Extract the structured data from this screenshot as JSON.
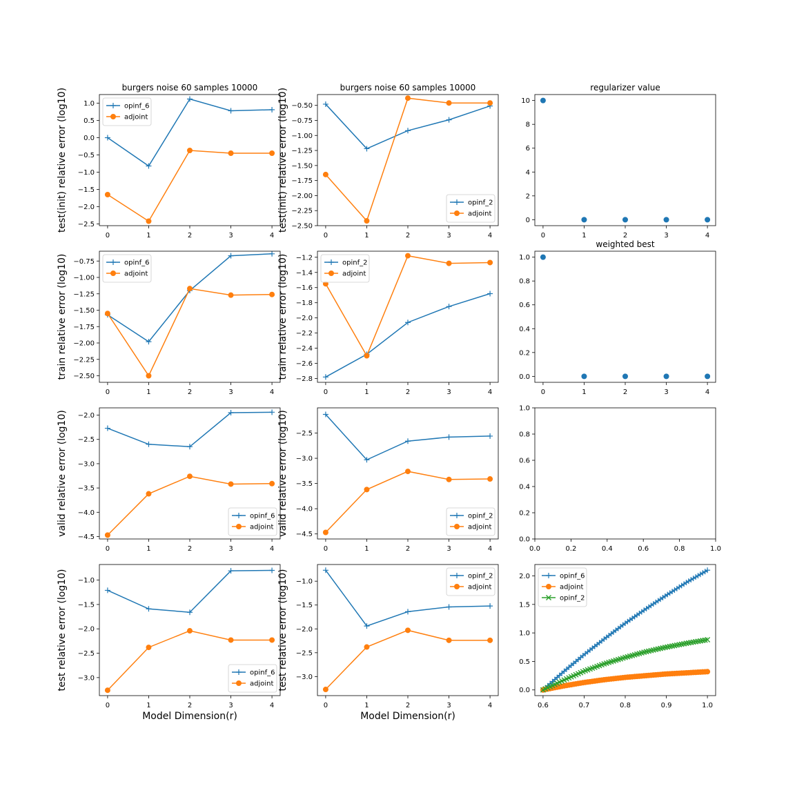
{
  "chart_data": [
    {
      "type": "line",
      "title": "burgers noise 60 samples 10000",
      "ylabel": "test(init) relative error (log10)",
      "xlabel": "",
      "x": [
        0,
        1,
        2,
        3,
        4
      ],
      "xticks": [
        "0",
        "1",
        "2",
        "3",
        "4"
      ],
      "ylim": [
        -2.55,
        1.25
      ],
      "yticks": [
        -2.5,
        -2.0,
        -1.5,
        -1.0,
        -0.5,
        0.0,
        0.5,
        1.0
      ],
      "yticklabels": [
        "−2.5",
        "−2.0",
        "−1.5",
        "−1.0",
        "−0.5",
        "0.0",
        "0.5",
        "1.0"
      ],
      "legend": "top-left",
      "series": [
        {
          "name": "opinf_6",
          "color": "#1f77b4",
          "marker": "plus",
          "values": [
            0.0,
            -0.82,
            1.12,
            0.78,
            0.81
          ]
        },
        {
          "name": "adjoint",
          "color": "#ff7f0e",
          "marker": "circle",
          "values": [
            -1.65,
            -2.42,
            -0.37,
            -0.45,
            -0.45
          ]
        }
      ]
    },
    {
      "type": "line",
      "title": "burgers noise 60 samples 10000",
      "ylabel": "test(init) relative error (log10)",
      "xlabel": "",
      "x": [
        0,
        1,
        2,
        3,
        4
      ],
      "xticks": [
        "0",
        "1",
        "2",
        "3",
        "4"
      ],
      "ylim": [
        -2.5,
        -0.32
      ],
      "yticks": [
        -2.5,
        -2.25,
        -2.0,
        -1.75,
        -1.5,
        -1.25,
        -1.0,
        -0.75,
        -0.5
      ],
      "yticklabels": [
        "−2.50",
        "−2.25",
        "−2.00",
        "−1.75",
        "−1.50",
        "−1.25",
        "−1.00",
        "−0.75",
        "−0.50"
      ],
      "legend": "bottom-right",
      "series": [
        {
          "name": "opinf_2",
          "color": "#1f77b4",
          "marker": "plus",
          "values": [
            -0.48,
            -1.22,
            -0.92,
            -0.74,
            -0.51
          ]
        },
        {
          "name": "adjoint",
          "color": "#ff7f0e",
          "marker": "circle",
          "values": [
            -1.65,
            -2.42,
            -0.38,
            -0.46,
            -0.46
          ]
        }
      ]
    },
    {
      "type": "scatter",
      "title": "regularizer value",
      "x": [
        0,
        1,
        2,
        3,
        4
      ],
      "xticks": [
        "0",
        "1",
        "2",
        "3",
        "4"
      ],
      "ylim": [
        -0.5,
        10.5
      ],
      "yticks": [
        0,
        2,
        4,
        6,
        8,
        10
      ],
      "yticklabels": [
        "0",
        "2",
        "4",
        "6",
        "8",
        "10"
      ],
      "series": [
        {
          "name": "regularizer",
          "color": "#1f77b4",
          "marker": "circle",
          "values": [
            10,
            0,
            0,
            0,
            0
          ]
        }
      ]
    },
    {
      "type": "line",
      "title": "",
      "ylabel": "train relative error (log10)",
      "x": [
        0,
        1,
        2,
        3,
        4
      ],
      "xticks": [
        "0",
        "1",
        "2",
        "3",
        "4"
      ],
      "ylim": [
        -2.6,
        -0.6
      ],
      "yticks": [
        -2.5,
        -2.25,
        -2.0,
        -1.75,
        -1.5,
        -1.25,
        -1.0,
        -0.75
      ],
      "yticklabels": [
        "−2.50",
        "−2.25",
        "−2.00",
        "−1.75",
        "−1.50",
        "−1.25",
        "−1.00",
        "−0.75"
      ],
      "legend": "top-left",
      "series": [
        {
          "name": "opinf_6",
          "color": "#1f77b4",
          "marker": "plus",
          "values": [
            -1.57,
            -1.98,
            -1.2,
            -0.67,
            -0.64
          ]
        },
        {
          "name": "adjoint",
          "color": "#ff7f0e",
          "marker": "circle",
          "values": [
            -1.55,
            -2.5,
            -1.17,
            -1.27,
            -1.26
          ]
        }
      ]
    },
    {
      "type": "line",
      "title": "",
      "ylabel": "train relative error (log10)",
      "x": [
        0,
        1,
        2,
        3,
        4
      ],
      "xticks": [
        "0",
        "1",
        "2",
        "3",
        "4"
      ],
      "ylim": [
        -2.85,
        -1.12
      ],
      "yticks": [
        -2.8,
        -2.6,
        -2.4,
        -2.2,
        -2.0,
        -1.8,
        -1.6,
        -1.4,
        -1.2
      ],
      "yticklabels": [
        "−2.8",
        "−2.6",
        "−2.4",
        "−2.2",
        "−2.0",
        "−1.8",
        "−1.6",
        "−1.4",
        "−1.2"
      ],
      "legend": "top-left",
      "series": [
        {
          "name": "opinf_2",
          "color": "#1f77b4",
          "marker": "plus",
          "values": [
            -2.78,
            -2.48,
            -2.06,
            -1.85,
            -1.68
          ]
        },
        {
          "name": "adjoint",
          "color": "#ff7f0e",
          "marker": "circle",
          "values": [
            -1.55,
            -2.5,
            -1.18,
            -1.28,
            -1.27
          ]
        }
      ]
    },
    {
      "type": "scatter",
      "title": "weighted best",
      "x": [
        0,
        1,
        2,
        3,
        4
      ],
      "xticks": [
        "0",
        "1",
        "2",
        "3",
        "4"
      ],
      "ylim": [
        -0.05,
        1.05
      ],
      "yticks": [
        0.0,
        0.2,
        0.4,
        0.6,
        0.8,
        1.0
      ],
      "yticklabels": [
        "0.0",
        "0.2",
        "0.4",
        "0.6",
        "0.8",
        "1.0"
      ],
      "series": [
        {
          "name": "weighted best",
          "color": "#1f77b4",
          "marker": "circle",
          "values": [
            1,
            0,
            0,
            0,
            0
          ]
        }
      ]
    },
    {
      "type": "line",
      "title": "",
      "ylabel": "valid relative error (log10)",
      "x": [
        0,
        1,
        2,
        3,
        4
      ],
      "xticks": [
        "0",
        "1",
        "2",
        "3",
        "4"
      ],
      "ylim": [
        -4.55,
        -1.85
      ],
      "yticks": [
        -4.5,
        -4.0,
        -3.5,
        -3.0,
        -2.5,
        -2.0
      ],
      "yticklabels": [
        "−4.5",
        "−4.0",
        "−3.5",
        "−3.0",
        "−2.5",
        "−2.0"
      ],
      "legend": "bottom-right",
      "series": [
        {
          "name": "opinf_6",
          "color": "#1f77b4",
          "marker": "plus",
          "values": [
            -2.27,
            -2.6,
            -2.65,
            -1.95,
            -1.94
          ]
        },
        {
          "name": "adjoint",
          "color": "#ff7f0e",
          "marker": "circle",
          "values": [
            -4.47,
            -3.62,
            -3.26,
            -3.42,
            -3.41
          ]
        }
      ]
    },
    {
      "type": "line",
      "title": "",
      "ylabel": "valid relative error (log10)",
      "x": [
        0,
        1,
        2,
        3,
        4
      ],
      "xticks": [
        "0",
        "1",
        "2",
        "3",
        "4"
      ],
      "ylim": [
        -4.6,
        -2.0
      ],
      "yticks": [
        -4.5,
        -4.0,
        -3.5,
        -3.0,
        -2.5
      ],
      "yticklabels": [
        "−4.5",
        "−4.0",
        "−3.5",
        "−3.0",
        "−2.5"
      ],
      "legend": "bottom-right",
      "series": [
        {
          "name": "opinf_2",
          "color": "#1f77b4",
          "marker": "plus",
          "values": [
            -2.13,
            -3.03,
            -2.66,
            -2.58,
            -2.56
          ]
        },
        {
          "name": "adjoint",
          "color": "#ff7f0e",
          "marker": "circle",
          "values": [
            -4.47,
            -3.62,
            -3.26,
            -3.42,
            -3.41
          ]
        }
      ]
    },
    {
      "type": "line",
      "title": "",
      "x": [],
      "xlim": [
        0,
        1
      ],
      "xtickvals": [
        0,
        0.2,
        0.4,
        0.6,
        0.8,
        1.0
      ],
      "xticks": [
        "0.0",
        "0.2",
        "0.4",
        "0.6",
        "0.8",
        "1.0"
      ],
      "ylim": [
        0,
        1
      ],
      "yticks": [
        0,
        0.2,
        0.4,
        0.6,
        0.8,
        1.0
      ],
      "yticklabels": [
        "0.0",
        "0.2",
        "0.4",
        "0.6",
        "0.8",
        "1.0"
      ],
      "series": []
    },
    {
      "type": "line",
      "title": "",
      "ylabel": "test relative error (log10)",
      "xlabel": "Model Dimension(r)",
      "x": [
        0,
        1,
        2,
        3,
        4
      ],
      "xticks": [
        "0",
        "1",
        "2",
        "3",
        "4"
      ],
      "ylim": [
        -3.37,
        -0.68
      ],
      "yticks": [
        -3.0,
        -2.5,
        -2.0,
        -1.5,
        -1.0
      ],
      "yticklabels": [
        "−3.0",
        "−2.5",
        "−2.0",
        "−1.5",
        "−1.0"
      ],
      "legend": "bottom-right",
      "series": [
        {
          "name": "opinf_6",
          "color": "#1f77b4",
          "marker": "plus",
          "values": [
            -1.21,
            -1.59,
            -1.66,
            -0.81,
            -0.8
          ]
        },
        {
          "name": "adjoint",
          "color": "#ff7f0e",
          "marker": "circle",
          "values": [
            -3.26,
            -2.38,
            -2.04,
            -2.23,
            -2.23
          ]
        }
      ]
    },
    {
      "type": "line",
      "title": "",
      "ylabel": "test relative error (log10)",
      "xlabel": "Model Dimension(r)",
      "x": [
        0,
        1,
        2,
        3,
        4
      ],
      "xticks": [
        "0",
        "1",
        "2",
        "3",
        "4"
      ],
      "ylim": [
        -3.4,
        -0.65
      ],
      "yticks": [
        -3.0,
        -2.5,
        -2.0,
        -1.5,
        -1.0
      ],
      "yticklabels": [
        "−3.0",
        "−2.5",
        "−2.0",
        "−1.5",
        "−1.0"
      ],
      "legend": "top-right",
      "series": [
        {
          "name": "opinf_2",
          "color": "#1f77b4",
          "marker": "plus",
          "values": [
            -0.77,
            -1.94,
            -1.64,
            -1.54,
            -1.52
          ]
        },
        {
          "name": "adjoint",
          "color": "#ff7f0e",
          "marker": "circle",
          "values": [
            -3.27,
            -2.38,
            -2.03,
            -2.24,
            -2.24
          ]
        }
      ]
    },
    {
      "type": "line",
      "title": "",
      "xlim": [
        0.58,
        1.02
      ],
      "xtickvals": [
        0.6,
        0.7,
        0.8,
        0.9,
        1.0
      ],
      "xticks": [
        "0.6",
        "0.7",
        "0.8",
        "0.9",
        "1.0"
      ],
      "ylim": [
        -0.1,
        2.2
      ],
      "yticks": [
        0.0,
        0.5,
        1.0,
        1.5,
        2.0
      ],
      "yticklabels": [
        "0.0",
        "0.5",
        "1.0",
        "1.5",
        "2.0"
      ],
      "legend": "top-left",
      "dense": true,
      "x": [
        0.6,
        0.65,
        0.7,
        0.75,
        0.8,
        0.85,
        0.9,
        0.95,
        1.0
      ],
      "series": [
        {
          "name": "opinf_6",
          "color": "#1f77b4",
          "marker": "plus",
          "values": [
            0.0,
            0.32,
            0.62,
            0.9,
            1.17,
            1.42,
            1.66,
            1.89,
            2.1
          ]
        },
        {
          "name": "adjoint",
          "color": "#ff7f0e",
          "marker": "circle",
          "values": [
            0.0,
            0.07,
            0.13,
            0.18,
            0.22,
            0.25,
            0.28,
            0.3,
            0.32
          ]
        },
        {
          "name": "opinf_2",
          "color": "#2ca02c",
          "marker": "x",
          "values": [
            0.0,
            0.17,
            0.33,
            0.46,
            0.57,
            0.67,
            0.75,
            0.82,
            0.88
          ]
        }
      ]
    }
  ]
}
